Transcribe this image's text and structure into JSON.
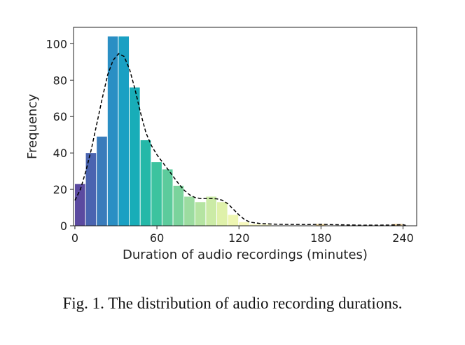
{
  "chart_data": {
    "type": "bar",
    "xlabel": "Duration of audio recordings (minutes)",
    "ylabel": "Frequency",
    "xlim": [
      -1,
      250
    ],
    "ylim": [
      0,
      109
    ],
    "xticks": [
      0,
      60,
      120,
      180,
      240
    ],
    "yticks": [
      0,
      20,
      40,
      60,
      80,
      100
    ],
    "bin_width": 8,
    "bins": [
      {
        "x0": 0,
        "x1": 8,
        "value": 23,
        "color": "#5b4aa0"
      },
      {
        "x0": 8,
        "x1": 16,
        "value": 40,
        "color": "#4a64b0"
      },
      {
        "x0": 16,
        "x1": 24,
        "value": 49,
        "color": "#3a7cbb"
      },
      {
        "x0": 24,
        "x1": 32,
        "value": 104,
        "color": "#2a8fc4"
      },
      {
        "x0": 32,
        "x1": 40,
        "value": 104,
        "color": "#1aa0c3"
      },
      {
        "x0": 40,
        "x1": 48,
        "value": 76,
        "color": "#18adb8"
      },
      {
        "x0": 48,
        "x1": 56,
        "value": 47,
        "color": "#24b8a8"
      },
      {
        "x0": 56,
        "x1": 64,
        "value": 35,
        "color": "#3cc39f"
      },
      {
        "x0": 64,
        "x1": 72,
        "value": 31,
        "color": "#5ccb9c"
      },
      {
        "x0": 72,
        "x1": 80,
        "value": 22,
        "color": "#7ad39c"
      },
      {
        "x0": 80,
        "x1": 88,
        "value": 16,
        "color": "#9cdca0"
      },
      {
        "x0": 88,
        "x1": 96,
        "value": 13,
        "color": "#b5e4a2"
      },
      {
        "x0": 96,
        "x1": 104,
        "value": 16,
        "color": "#cbeba6"
      },
      {
        "x0": 104,
        "x1": 112,
        "value": 13,
        "color": "#dff1aa"
      },
      {
        "x0": 112,
        "x1": 120,
        "value": 6,
        "color": "#eef6b2"
      },
      {
        "x0": 120,
        "x1": 128,
        "value": 2,
        "color": "#f6f8bd"
      },
      {
        "x0": 128,
        "x1": 136,
        "value": 1,
        "color": "#fafac8"
      },
      {
        "x0": 136,
        "x1": 144,
        "value": 1,
        "color": "#fbfbd0"
      },
      {
        "x0": 176,
        "x1": 184,
        "value": 1,
        "color": "#f0d9a0"
      },
      {
        "x0": 232,
        "x1": 240,
        "value": 1,
        "color": "#e8c890"
      }
    ],
    "density_curve": {
      "style": "dashed",
      "color": "#000000",
      "points": [
        [
          0,
          14
        ],
        [
          4,
          20
        ],
        [
          8,
          30
        ],
        [
          12,
          42
        ],
        [
          16,
          56
        ],
        [
          20,
          70
        ],
        [
          24,
          83
        ],
        [
          28,
          91
        ],
        [
          32,
          94.5
        ],
        [
          36,
          93
        ],
        [
          40,
          86
        ],
        [
          44,
          75
        ],
        [
          48,
          62
        ],
        [
          52,
          51
        ],
        [
          56,
          44
        ],
        [
          60,
          39
        ],
        [
          64,
          35
        ],
        [
          68,
          31
        ],
        [
          72,
          27
        ],
        [
          76,
          23
        ],
        [
          80,
          19.5
        ],
        [
          84,
          17
        ],
        [
          88,
          15.5
        ],
        [
          92,
          15
        ],
        [
          96,
          15
        ],
        [
          100,
          15
        ],
        [
          104,
          14.8
        ],
        [
          108,
          14
        ],
        [
          112,
          12
        ],
        [
          116,
          9
        ],
        [
          120,
          6
        ],
        [
          124,
          3.5
        ],
        [
          128,
          2
        ],
        [
          136,
          1.2
        ],
        [
          150,
          0.8
        ],
        [
          170,
          0.7
        ],
        [
          180,
          0.8
        ],
        [
          190,
          0.6
        ],
        [
          210,
          0.3
        ],
        [
          230,
          0.4
        ],
        [
          240,
          0.6
        ],
        [
          242,
          0.2
        ]
      ]
    }
  },
  "caption": "Fig. 1.  The distribution of audio recording durations."
}
